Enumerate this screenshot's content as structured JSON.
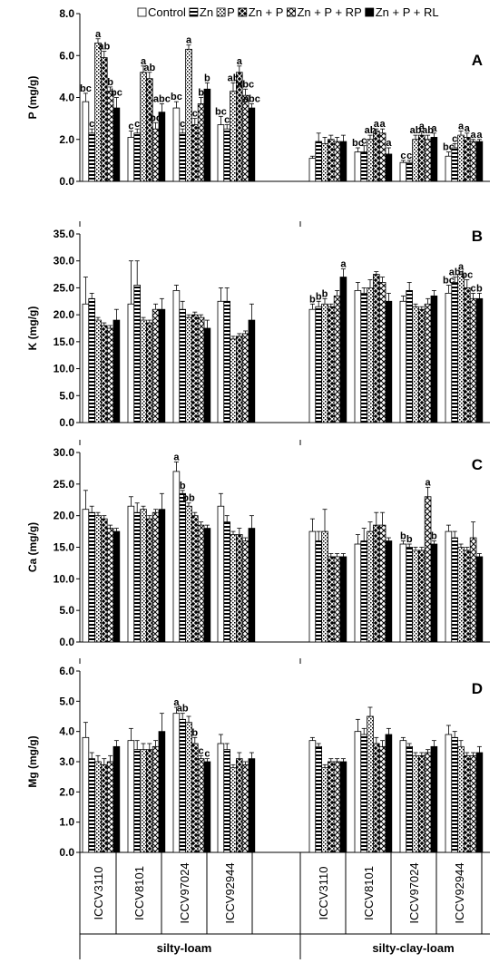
{
  "legend": [
    "Control",
    "Zn",
    "P",
    "Zn + P",
    "Zn + P + RP",
    "Zn + P + RL"
  ],
  "genotypes": [
    "ICCV3110",
    "ICCV8101",
    "ICCV97024",
    "ICCV92944"
  ],
  "soils": [
    "silty-loam",
    "silty-clay-loam"
  ],
  "chart_data": [
    {
      "type": "bar",
      "panel": "A",
      "ylabel": "P (mg/g)",
      "ylim": [
        0,
        8
      ],
      "yticks": [
        "0.0",
        "2.0",
        "4.0",
        "6.0",
        "8.0"
      ],
      "categories": [
        "ICCV3110",
        "ICCV8101",
        "ICCV97024",
        "ICCV92944",
        "ICCV3110",
        "ICCV8101",
        "ICCV97024",
        "ICCV92944"
      ],
      "groups": [
        "silty-loam",
        "silty-loam",
        "silty-loam",
        "silty-loam",
        "silty-clay-loam",
        "silty-clay-loam",
        "silty-clay-loam",
        "silty-clay-loam"
      ],
      "series": [
        {
          "name": "Control",
          "values": [
            3.8,
            2.1,
            3.5,
            2.7,
            1.1,
            1.4,
            0.9,
            1.2
          ],
          "err": [
            0.4,
            0.3,
            0.3,
            0.4,
            0.1,
            0.2,
            0.1,
            0.2
          ],
          "letters": [
            "bc",
            "c",
            "bc",
            "bc",
            "",
            "bc",
            "c",
            "bc"
          ]
        },
        {
          "name": "Zn",
          "values": [
            2.3,
            2.3,
            2.3,
            2.5,
            1.9,
            1.4,
            0.9,
            1.6
          ],
          "err": [
            0.2,
            0.2,
            0.2,
            0.2,
            0.4,
            0.3,
            0.1,
            0.2
          ],
          "letters": [
            "c",
            "c",
            "c",
            "c",
            "",
            "c",
            "c",
            "c"
          ]
        },
        {
          "name": "P",
          "values": [
            6.6,
            5.2,
            6.3,
            4.3,
            1.8,
            2.0,
            2.0,
            2.2
          ],
          "err": [
            0.2,
            0.3,
            0.2,
            0.4,
            0.3,
            0.2,
            0.2,
            0.2
          ],
          "letters": [
            "a",
            "a",
            "a",
            "ab",
            "",
            "ab",
            "ab",
            "a"
          ]
        },
        {
          "name": "Zn + P",
          "values": [
            5.9,
            4.9,
            2.7,
            5.2,
            2.0,
            2.4,
            2.2,
            2.1
          ],
          "err": [
            0.3,
            0.3,
            0.3,
            0.3,
            0.2,
            0.1,
            0.2,
            0.2
          ],
          "letters": [
            "ab",
            "ab",
            "c",
            "a",
            "",
            "a",
            "a",
            "a"
          ]
        },
        {
          "name": "Zn + P + RP",
          "values": [
            4.3,
            2.5,
            3.7,
            4.1,
            1.9,
            2.3,
            2.0,
            1.9
          ],
          "err": [
            0.2,
            0.3,
            0.3,
            0.3,
            0.2,
            0.2,
            0.2,
            0.1
          ],
          "letters": [
            "b",
            "bc",
            "b",
            "abc",
            "",
            "a",
            "ab",
            "a"
          ]
        },
        {
          "name": "Zn + P + RL",
          "values": [
            3.5,
            3.3,
            4.4,
            3.5,
            1.9,
            1.3,
            2.1,
            1.9
          ],
          "err": [
            0.5,
            0.4,
            0.3,
            0.2,
            0.3,
            0.3,
            0.2,
            0.1
          ],
          "letters": [
            "bc",
            "abc",
            "b",
            "abc",
            "",
            "a",
            "a",
            "a"
          ]
        }
      ]
    },
    {
      "type": "bar",
      "panel": "B",
      "ylabel": "K (mg/g)",
      "ylim": [
        0,
        35
      ],
      "yticks": [
        "0.0",
        "5.0",
        "10.0",
        "15.0",
        "20.0",
        "25.0",
        "30.0",
        "35.0"
      ],
      "categories": [
        "ICCV3110",
        "ICCV8101",
        "ICCV97024",
        "ICCV92944",
        "ICCV3110",
        "ICCV8101",
        "ICCV97024",
        "ICCV92944"
      ],
      "groups": [
        "silty-loam",
        "silty-loam",
        "silty-loam",
        "silty-loam",
        "silty-clay-loam",
        "silty-clay-loam",
        "silty-clay-loam",
        "silty-clay-loam"
      ],
      "series": [
        {
          "name": "Control",
          "values": [
            22,
            22,
            24.5,
            22.5,
            21,
            24.5,
            22.5,
            24
          ],
          "err": [
            5,
            8,
            1,
            2.5,
            1,
            1.5,
            1,
            1.5
          ],
          "letters": [
            "",
            "",
            "",
            "",
            "b",
            "",
            "",
            "bc"
          ]
        },
        {
          "name": "Zn",
          "values": [
            23,
            25.5,
            21,
            22.5,
            21.5,
            24,
            24.5,
            26
          ],
          "err": [
            1,
            4.5,
            1.5,
            2.5,
            1,
            1,
            1.5,
            1
          ],
          "letters": [
            "",
            "",
            "",
            "",
            "b",
            "",
            "",
            "ab"
          ]
        },
        {
          "name": "P",
          "values": [
            19,
            19,
            19.5,
            15.5,
            22,
            25,
            21.5,
            27.5
          ],
          "err": [
            0.5,
            0.5,
            0.5,
            0.5,
            1,
            1.5,
            0.5,
            0.5
          ],
          "letters": [
            "",
            "",
            "",
            "",
            "b",
            "",
            "",
            "a"
          ]
        },
        {
          "name": "Zn + P",
          "values": [
            18,
            18.5,
            20,
            16,
            21.5,
            27.5,
            21,
            25
          ],
          "err": [
            0.5,
            0.5,
            0.5,
            0.5,
            0.5,
            0.5,
            0.5,
            1.5
          ],
          "letters": [
            "",
            "",
            "",
            "",
            "",
            "",
            "",
            "bc"
          ]
        },
        {
          "name": "Zn + P + RP",
          "values": [
            17.5,
            21,
            19.5,
            16.5,
            23.5,
            26,
            22,
            23
          ],
          "err": [
            0.5,
            1,
            0.5,
            0.5,
            1,
            1,
            1,
            1
          ],
          "letters": [
            "",
            "",
            "",
            "",
            "",
            "",
            "",
            "c"
          ]
        },
        {
          "name": "Zn + P + RL",
          "values": [
            19,
            21,
            17.5,
            19,
            27,
            22.5,
            23.5,
            23
          ],
          "err": [
            2,
            2,
            1.5,
            3,
            1.5,
            1.5,
            1,
            1
          ],
          "letters": [
            "",
            "",
            "",
            "",
            "a",
            "",
            "",
            "b"
          ]
        }
      ]
    },
    {
      "type": "bar",
      "panel": "C",
      "ylabel": "Ca (mg/g)",
      "ylim": [
        0,
        30
      ],
      "yticks": [
        "0.0",
        "5.0",
        "10.0",
        "15.0",
        "20.0",
        "25.0",
        "30.0"
      ],
      "categories": [
        "ICCV3110",
        "ICCV8101",
        "ICCV97024",
        "ICCV92944",
        "ICCV3110",
        "ICCV8101",
        "ICCV97024",
        "ICCV92944"
      ],
      "groups": [
        "silty-loam",
        "silty-loam",
        "silty-loam",
        "silty-loam",
        "silty-clay-loam",
        "silty-clay-loam",
        "silty-clay-loam",
        "silty-clay-loam"
      ],
      "series": [
        {
          "name": "Control",
          "values": [
            21,
            21.5,
            27,
            21.5,
            17.5,
            15.5,
            15.5,
            17.5
          ],
          "err": [
            3,
            1.5,
            1.5,
            2,
            2,
            1.5,
            0.5,
            1
          ],
          "letters": [
            "",
            "",
            "a",
            "",
            "",
            "",
            "b",
            ""
          ]
        },
        {
          "name": "Zn",
          "values": [
            20.5,
            20.5,
            23.5,
            19,
            16,
            16,
            15,
            16.5
          ],
          "err": [
            1,
            1.5,
            0.5,
            1,
            1.5,
            2,
            0.5,
            1
          ],
          "letters": [
            "",
            "",
            "b",
            "",
            "",
            "",
            "b",
            ""
          ]
        },
        {
          "name": "P",
          "values": [
            20,
            21,
            21.5,
            17,
            17.5,
            17.5,
            14.5,
            15
          ],
          "err": [
            0.5,
            0.5,
            0.5,
            0.5,
            3.5,
            1.5,
            0.5,
            0.5
          ],
          "letters": [
            "",
            "",
            "bb",
            "",
            "",
            "",
            "",
            ""
          ]
        },
        {
          "name": "Zn + P",
          "values": [
            19.5,
            19.5,
            20,
            17,
            13.5,
            18.5,
            14.5,
            14.5
          ],
          "err": [
            0.5,
            0.5,
            0.5,
            1,
            0.5,
            2,
            0.5,
            0.5
          ],
          "letters": [
            "",
            "",
            "",
            "",
            "",
            "",
            "",
            ""
          ]
        },
        {
          "name": "Zn + P + RP",
          "values": [
            18,
            20.5,
            18.5,
            16,
            13.5,
            18.5,
            23,
            16.5
          ],
          "err": [
            0.5,
            0.5,
            0.5,
            0.5,
            0.5,
            2,
            1.5,
            2.5
          ],
          "letters": [
            "",
            "",
            "",
            "",
            "",
            "",
            "a",
            ""
          ]
        },
        {
          "name": "Zn + P + RL",
          "values": [
            17.5,
            21,
            18,
            18,
            13.5,
            16,
            15.5,
            13.5
          ],
          "err": [
            0.5,
            2.5,
            0.5,
            2,
            0.5,
            0.5,
            0.5,
            0.5
          ],
          "letters": [
            "",
            "",
            "",
            "",
            "",
            "",
            "b",
            ""
          ]
        }
      ]
    },
    {
      "type": "bar",
      "panel": "D",
      "ylabel": "Mg (mg/g)",
      "ylim": [
        0,
        6
      ],
      "yticks": [
        "0.0",
        "1.0",
        "2.0",
        "3.0",
        "4.0",
        "5.0",
        "6.0"
      ],
      "categories": [
        "ICCV3110",
        "ICCV8101",
        "ICCV97024",
        "ICCV92944",
        "ICCV3110",
        "ICCV8101",
        "ICCV97024",
        "ICCV92944"
      ],
      "groups": [
        "silty-loam",
        "silty-loam",
        "silty-loam",
        "silty-loam",
        "silty-clay-loam",
        "silty-clay-loam",
        "silty-clay-loam",
        "silty-clay-loam"
      ],
      "series": [
        {
          "name": "Control",
          "values": [
            3.8,
            3.7,
            4.6,
            3.6,
            3.7,
            4.0,
            3.7,
            3.9
          ],
          "err": [
            0.5,
            0.4,
            0.2,
            0.3,
            0.1,
            0.4,
            0.1,
            0.3
          ],
          "letters": [
            "",
            "",
            "a",
            "",
            "",
            "",
            "",
            ""
          ]
        },
        {
          "name": "Zn",
          "values": [
            3.1,
            3.4,
            4.4,
            3.4,
            3.5,
            3.9,
            3.5,
            3.8
          ],
          "err": [
            0.2,
            0.3,
            0.2,
            0.2,
            0.1,
            0.2,
            0.1,
            0.2
          ],
          "letters": [
            "",
            "",
            "ab",
            "",
            "",
            "",
            "",
            ""
          ]
        },
        {
          "name": "P",
          "values": [
            3.0,
            3.4,
            4.3,
            2.8,
            2.8,
            4.5,
            3.2,
            3.5
          ],
          "err": [
            0.2,
            0.2,
            0.2,
            0.1,
            0.1,
            0.3,
            0.1,
            0.2
          ],
          "letters": [
            "",
            "",
            "",
            "",
            "",
            "",
            "",
            ""
          ]
        },
        {
          "name": "Zn + P",
          "values": [
            2.9,
            3.4,
            3.6,
            3.1,
            3.0,
            3.6,
            3.2,
            3.2
          ],
          "err": [
            0.2,
            0.2,
            0.2,
            0.2,
            0.1,
            0.2,
            0.1,
            0.1
          ],
          "letters": [
            "",
            "",
            "b",
            "",
            "",
            "",
            "",
            ""
          ]
        },
        {
          "name": "Zn + P + RP",
          "values": [
            3.0,
            3.5,
            3.1,
            2.9,
            3.0,
            3.5,
            3.3,
            3.2
          ],
          "err": [
            0.2,
            0.2,
            0.1,
            0.1,
            0.1,
            0.2,
            0.1,
            0.1
          ],
          "letters": [
            "",
            "",
            "c",
            "",
            "",
            "",
            "",
            ""
          ]
        },
        {
          "name": "Zn + P + RL",
          "values": [
            3.5,
            4.0,
            3.0,
            3.1,
            3.0,
            3.9,
            3.5,
            3.3
          ],
          "err": [
            0.2,
            0.6,
            0.1,
            0.2,
            0.1,
            0.2,
            0.2,
            0.2
          ],
          "letters": [
            "",
            "",
            "c",
            "",
            "",
            "",
            "",
            ""
          ]
        }
      ]
    }
  ]
}
